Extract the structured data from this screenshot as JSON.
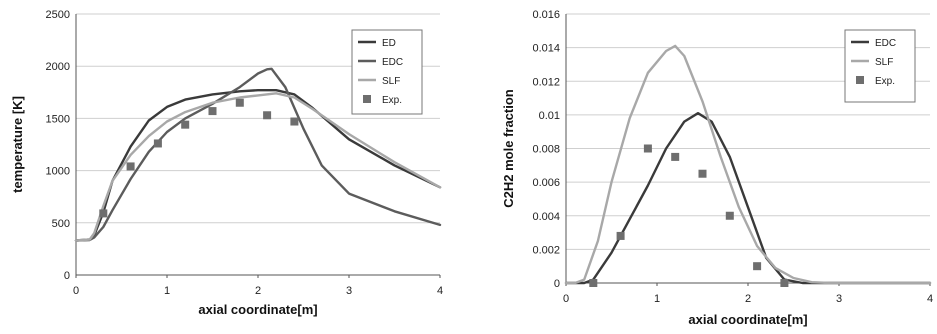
{
  "chart_data": [
    {
      "type": "line",
      "title": "",
      "xlabel": "axial coordinate[m]",
      "ylabel": "temperature [K]",
      "xlim": [
        0,
        4
      ],
      "ylim": [
        0,
        2500
      ],
      "x_ticks": [
        "0",
        "1",
        "2",
        "3",
        "4"
      ],
      "y_ticks": [
        "0",
        "500",
        "1000",
        "1500",
        "2000",
        "2500"
      ],
      "grid": true,
      "legend": "top-right",
      "series": [
        {
          "name": "ED",
          "kind": "line",
          "color": "#3a3a3a",
          "x": [
            0,
            0.15,
            0.2,
            0.3,
            0.4,
            0.6,
            0.8,
            1.0,
            1.2,
            1.5,
            1.8,
            2.0,
            2.2,
            2.4,
            2.6,
            3.0,
            3.5,
            4.0
          ],
          "y": [
            330,
            340,
            380,
            600,
            900,
            1230,
            1480,
            1610,
            1680,
            1730,
            1760,
            1770,
            1770,
            1730,
            1600,
            1300,
            1050,
            840
          ]
        },
        {
          "name": "EDC",
          "kind": "line",
          "color": "#5c5c5c",
          "x": [
            0,
            0.15,
            0.2,
            0.3,
            0.4,
            0.6,
            0.8,
            1.0,
            1.2,
            1.5,
            1.8,
            2.0,
            2.1,
            2.15,
            2.3,
            2.5,
            2.7,
            3.0,
            3.5,
            4.0
          ],
          "y": [
            330,
            335,
            360,
            460,
            620,
            920,
            1180,
            1370,
            1500,
            1640,
            1800,
            1930,
            1970,
            1975,
            1800,
            1400,
            1050,
            780,
            610,
            480
          ]
        },
        {
          "name": "SLF",
          "kind": "line",
          "color": "#a8a8a8",
          "x": [
            0,
            0.15,
            0.2,
            0.3,
            0.4,
            0.6,
            0.8,
            1.0,
            1.2,
            1.5,
            1.8,
            2.0,
            2.2,
            2.4,
            2.6,
            3.0,
            3.5,
            4.0
          ],
          "y": [
            330,
            340,
            400,
            660,
            900,
            1150,
            1330,
            1470,
            1560,
            1650,
            1700,
            1720,
            1740,
            1700,
            1590,
            1350,
            1080,
            840
          ]
        },
        {
          "name": "Exp.",
          "kind": "scatter",
          "color": "#6e6e6e",
          "x": [
            0.3,
            0.6,
            0.9,
            1.2,
            1.5,
            1.8,
            2.1,
            2.4
          ],
          "y": [
            590,
            1040,
            1260,
            1440,
            1570,
            1650,
            1530,
            1470
          ]
        }
      ]
    },
    {
      "type": "line",
      "title": "",
      "xlabel": "axial coordinate[m]",
      "ylabel": "C2H2 mole fraction",
      "xlim": [
        0,
        4
      ],
      "ylim": [
        0,
        0.016
      ],
      "x_ticks": [
        "0",
        "1",
        "2",
        "3",
        "4"
      ],
      "y_ticks": [
        "0",
        "0.002",
        "0.004",
        "0.006",
        "0.008",
        "0.01",
        "0.012",
        "0.014",
        "0.016"
      ],
      "grid": true,
      "legend": "top-right",
      "series": [
        {
          "name": "EDC",
          "kind": "line",
          "color": "#3a3a3a",
          "x": [
            0,
            0.2,
            0.3,
            0.5,
            0.7,
            0.9,
            1.1,
            1.3,
            1.45,
            1.6,
            1.8,
            2.0,
            2.2,
            2.4,
            2.6,
            3.0,
            4.0
          ],
          "y": [
            0,
            0,
            0.0002,
            0.0018,
            0.0038,
            0.0058,
            0.008,
            0.0096,
            0.0101,
            0.0096,
            0.0075,
            0.0045,
            0.0015,
            0.0002,
            0,
            0,
            0
          ]
        },
        {
          "name": "SLF",
          "kind": "line",
          "color": "#a8a8a8",
          "x": [
            0,
            0.1,
            0.2,
            0.35,
            0.5,
            0.7,
            0.9,
            1.1,
            1.2,
            1.3,
            1.5,
            1.7,
            1.9,
            2.1,
            2.3,
            2.5,
            2.7,
            2.9,
            3.0,
            4.0
          ],
          "y": [
            0,
            0,
            0.0002,
            0.0025,
            0.006,
            0.0098,
            0.0125,
            0.0138,
            0.0141,
            0.0135,
            0.0108,
            0.0075,
            0.0045,
            0.0022,
            0.0009,
            0.0003,
            5e-05,
            0,
            0,
            0
          ]
        },
        {
          "name": "Exp.",
          "kind": "scatter",
          "color": "#6e6e6e",
          "x": [
            0.3,
            0.6,
            0.9,
            1.2,
            1.5,
            1.8,
            2.1,
            2.4
          ],
          "y": [
            0,
            0.0028,
            0.008,
            0.0075,
            0.0065,
            0.004,
            0.001,
            0
          ]
        }
      ]
    }
  ]
}
